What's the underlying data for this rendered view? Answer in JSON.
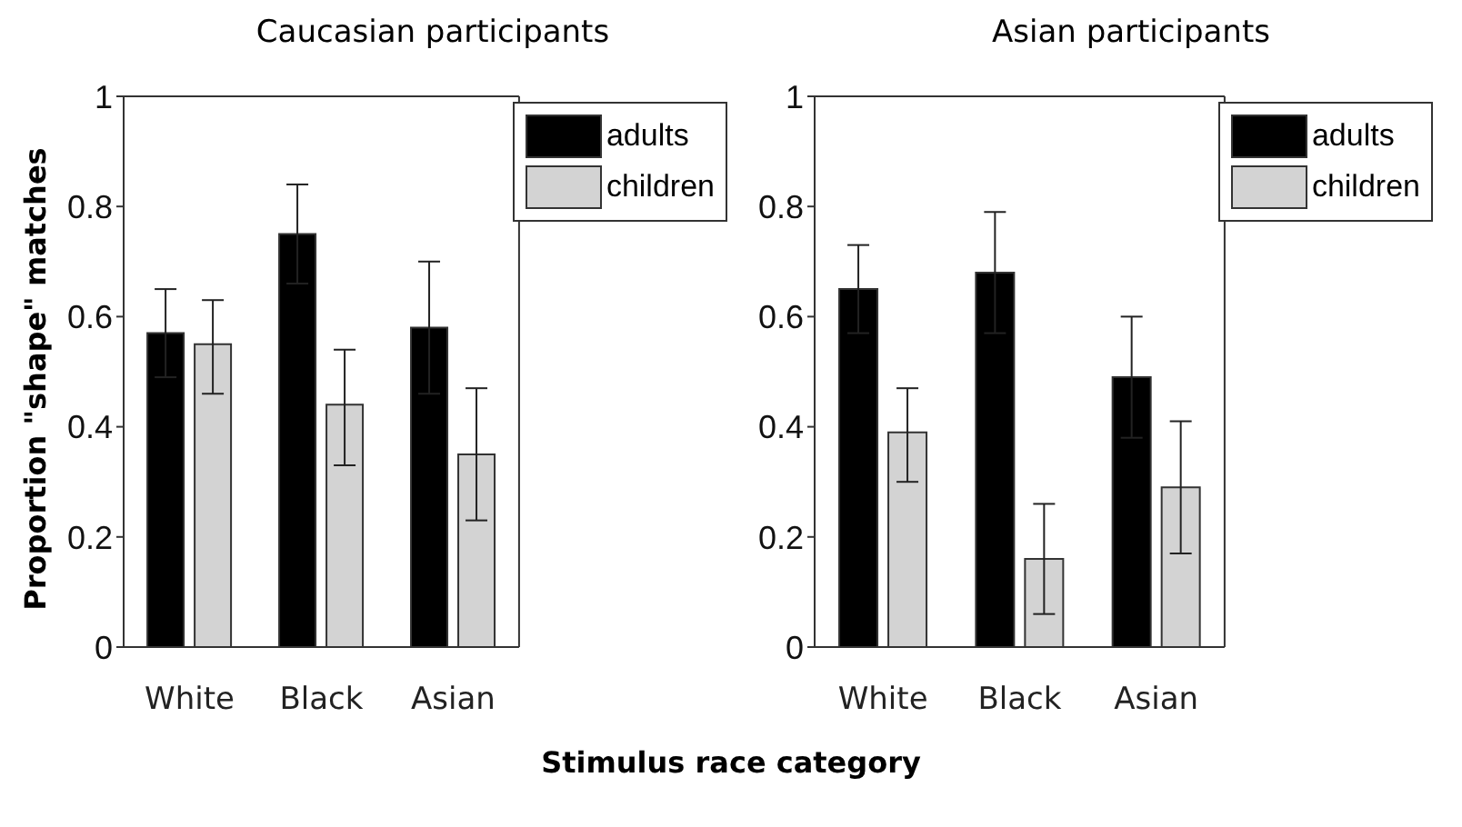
{
  "chart_data": [
    {
      "type": "bar",
      "title": "Caucasian participants",
      "xlabel": "Stimulus race category",
      "ylabel": "Proportion \"shape\" matches",
      "categories": [
        "White",
        "Black",
        "Asian"
      ],
      "series": [
        {
          "name": "adults",
          "color": "#000000",
          "values": [
            0.57,
            0.75,
            0.58
          ],
          "errors": [
            0.08,
            0.09,
            0.12
          ]
        },
        {
          "name": "children",
          "color": "#d3d3d3",
          "values": [
            0.55,
            0.44,
            0.35
          ],
          "errors": [
            [
              0.46,
              0.63
            ],
            [
              0.33,
              0.54
            ],
            [
              0.23,
              0.47
            ]
          ]
        }
      ],
      "ylim": [
        0,
        1
      ],
      "yticks": [
        0,
        0.2,
        0.4,
        0.6,
        0.8,
        1
      ],
      "legend": "top right",
      "grid": false
    },
    {
      "type": "bar",
      "title": "Asian participants",
      "categories": [
        "White",
        "Black",
        "Asian"
      ],
      "series": [
        {
          "name": "adults",
          "color": "#000000",
          "values": [
            0.65,
            0.68,
            0.49
          ],
          "errors": [
            0.08,
            0.11,
            0.11
          ]
        },
        {
          "name": "children",
          "color": "#d3d3d3",
          "values": [
            0.39,
            0.16,
            0.29
          ],
          "errors": [
            [
              0.3,
              0.47
            ],
            [
              0.06,
              0.26
            ],
            [
              0.17,
              0.41
            ]
          ]
        }
      ],
      "ylim": [
        0,
        1
      ],
      "yticks": [
        0,
        0.2,
        0.4,
        0.6,
        0.8,
        1
      ],
      "legend": "top right",
      "grid": false
    }
  ]
}
